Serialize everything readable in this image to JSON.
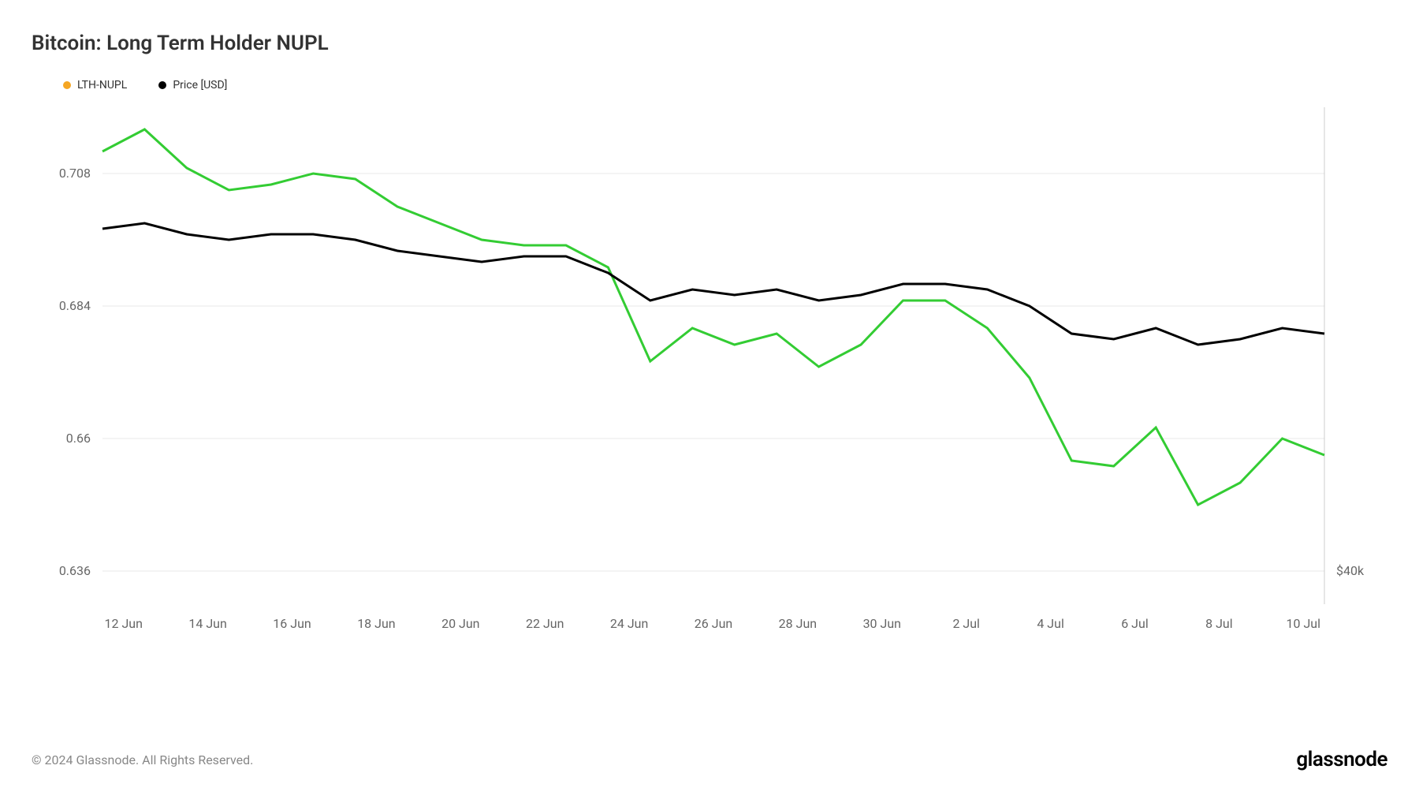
{
  "title": "Bitcoin: Long Term Holder NUPL",
  "legend": [
    {
      "label": "LTH-NUPL",
      "color": "#f5a623"
    },
    {
      "label": "Price [USD]",
      "color": "#000000"
    }
  ],
  "chart": {
    "type": "line",
    "background_color": "#ffffff",
    "grid_color": "#e8e8e8",
    "border_color": "#cccccc",
    "x_labels": [
      "12 Jun",
      "14 Jun",
      "16 Jun",
      "18 Jun",
      "20 Jun",
      "22 Jun",
      "24 Jun",
      "26 Jun",
      "28 Jun",
      "30 Jun",
      "2 Jul",
      "4 Jul",
      "6 Jul",
      "8 Jul",
      "10 Jul"
    ],
    "y_left": {
      "min": 0.63,
      "max": 0.72,
      "ticks": [
        0.636,
        0.66,
        0.684,
        0.708
      ]
    },
    "y_right": {
      "ticks": [
        "$40k"
      ]
    },
    "series": [
      {
        "name": "LTH-NUPL",
        "color": "#33cc33",
        "axis": "left",
        "line_width": 3,
        "data": [
          [
            0,
            0.712
          ],
          [
            1,
            0.716
          ],
          [
            2,
            0.709
          ],
          [
            3,
            0.705
          ],
          [
            4,
            0.706
          ],
          [
            5,
            0.708
          ],
          [
            6,
            0.707
          ],
          [
            7,
            0.702
          ],
          [
            8,
            0.699
          ],
          [
            9,
            0.696
          ],
          [
            10,
            0.695
          ],
          [
            11,
            0.695
          ],
          [
            12,
            0.691
          ],
          [
            13,
            0.674
          ],
          [
            14,
            0.68
          ],
          [
            15,
            0.677
          ],
          [
            16,
            0.679
          ],
          [
            17,
            0.673
          ],
          [
            18,
            0.677
          ],
          [
            19,
            0.685
          ],
          [
            20,
            0.685
          ],
          [
            21,
            0.68
          ],
          [
            22,
            0.671
          ],
          [
            23,
            0.656
          ],
          [
            24,
            0.655
          ],
          [
            25,
            0.662
          ],
          [
            26,
            0.648
          ],
          [
            27,
            0.652
          ],
          [
            28,
            0.66
          ],
          [
            29,
            0.657
          ]
        ]
      },
      {
        "name": "Price",
        "color": "#000000",
        "axis": "left",
        "line_width": 3,
        "data": [
          [
            0,
            0.698
          ],
          [
            1,
            0.699
          ],
          [
            2,
            0.697
          ],
          [
            3,
            0.696
          ],
          [
            4,
            0.697
          ],
          [
            5,
            0.697
          ],
          [
            6,
            0.696
          ],
          [
            7,
            0.694
          ],
          [
            8,
            0.693
          ],
          [
            9,
            0.692
          ],
          [
            10,
            0.693
          ],
          [
            11,
            0.693
          ],
          [
            12,
            0.69
          ],
          [
            13,
            0.685
          ],
          [
            14,
            0.687
          ],
          [
            15,
            0.686
          ],
          [
            16,
            0.687
          ],
          [
            17,
            0.685
          ],
          [
            18,
            0.686
          ],
          [
            19,
            0.688
          ],
          [
            20,
            0.688
          ],
          [
            21,
            0.687
          ],
          [
            22,
            0.684
          ],
          [
            23,
            0.679
          ],
          [
            24,
            0.678
          ],
          [
            25,
            0.68
          ],
          [
            26,
            0.677
          ],
          [
            27,
            0.678
          ],
          [
            28,
            0.68
          ],
          [
            29,
            0.679
          ]
        ]
      }
    ]
  },
  "copyright": "© 2024 Glassnode. All Rights Reserved.",
  "brand": "glassnode"
}
